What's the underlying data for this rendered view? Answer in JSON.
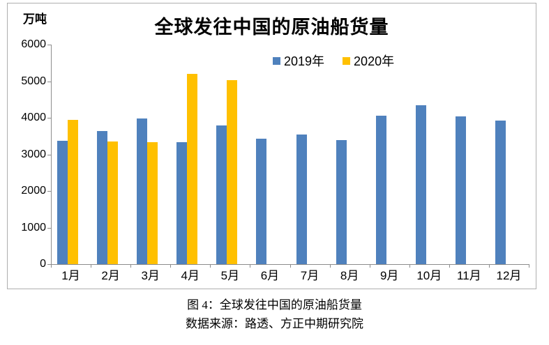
{
  "title": "全球发往中国的原油船货量",
  "y_axis_unit": "万吨",
  "legend": {
    "items": [
      {
        "label": "2019年",
        "color": "#4f81bd"
      },
      {
        "label": "2020年",
        "color": "#ffc000"
      }
    ]
  },
  "caption": {
    "line1": "图 4：全球发往中国的原油船货量",
    "line2": "数据来源：路透、方正中期研究院"
  },
  "chart_data": {
    "type": "bar",
    "title": "全球发往中国的原油船货量",
    "ylabel": "万吨",
    "ylim": [
      0,
      6000
    ],
    "yticks": [
      0,
      1000,
      2000,
      3000,
      4000,
      5000,
      6000
    ],
    "grid": false,
    "legend_position": "top-center",
    "categories": [
      "1月",
      "2月",
      "3月",
      "4月",
      "5月",
      "6月",
      "7月",
      "8月",
      "9月",
      "10月",
      "11月",
      "12月"
    ],
    "series": [
      {
        "name": "2019年",
        "color": "#4f81bd",
        "values": [
          3380,
          3630,
          3990,
          3330,
          3800,
          3420,
          3550,
          3400,
          4050,
          4350,
          4030,
          3930
        ]
      },
      {
        "name": "2020年",
        "color": "#ffc000",
        "values": [
          3950,
          3360,
          3340,
          5200,
          5020,
          null,
          null,
          null,
          null,
          null,
          null,
          null
        ]
      }
    ]
  }
}
